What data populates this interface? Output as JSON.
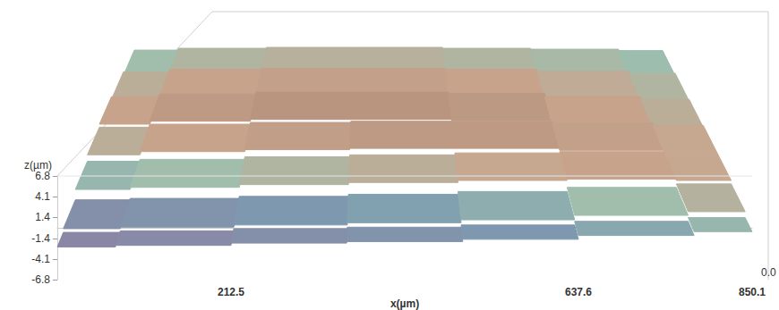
{
  "chart_data": {
    "type": "surface3d",
    "xlabel": "x(µm)",
    "zlabel": "z(µm)",
    "xlim": [
      0,
      850.1
    ],
    "xticks": [
      212.5,
      637.6,
      850.1
    ],
    "zlim": [
      -6.8,
      6.8
    ],
    "zticks": [
      -6.8,
      -4.1,
      -1.4,
      1.4,
      4.1,
      6.8
    ],
    "ylim": [
      0,
      640
    ],
    "yticks": [
      {
        "value": 0,
        "label": "0.0"
      }
    ],
    "grid": false,
    "surface": {
      "x": [
        0,
        142,
        283,
        425,
        567,
        708,
        850.1
      ],
      "y": [
        0,
        100,
        200,
        300,
        400,
        500,
        600
      ],
      "z": [
        [
          -2.5,
          -2.3,
          -2.0,
          -1.8,
          -1.5,
          -1.0,
          -0.5
        ],
        [
          -2.0,
          -1.8,
          -1.5,
          -1.2,
          -0.8,
          -0.2,
          0.3
        ],
        [
          -0.5,
          -0.2,
          0.2,
          0.5,
          0.8,
          1.0,
          0.8
        ],
        [
          0.5,
          1.0,
          1.3,
          1.5,
          1.5,
          1.2,
          0.8
        ],
        [
          1.0,
          1.5,
          1.8,
          1.8,
          1.6,
          1.0,
          0.5
        ],
        [
          0.5,
          1.0,
          1.2,
          1.2,
          1.0,
          0.6,
          0.2
        ],
        [
          -0.2,
          0.2,
          0.4,
          0.4,
          0.2,
          0.0,
          -0.3
        ]
      ]
    },
    "color_range": [
      -2.5,
      2
    ],
    "colors": [
      "#8a86a6",
      "#7d9bb0",
      "#9fbfae",
      "#c9a58e",
      "#b5927c"
    ]
  }
}
